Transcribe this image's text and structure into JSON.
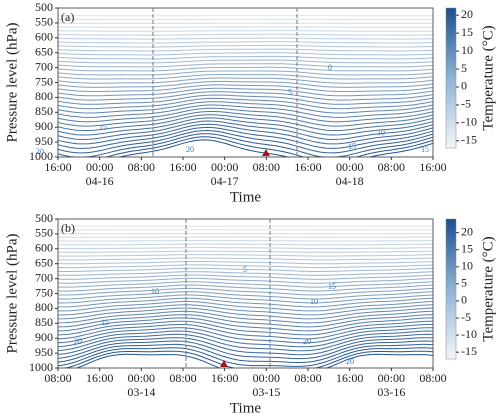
{
  "chart_data": [
    {
      "type": "contour",
      "panel_label": "(a)",
      "ylabel": "Pressure level (hPa)",
      "xlabel": "Time",
      "categories": [
        "16:00",
        "00:00",
        "08:00",
        "16:00",
        "00:00",
        "08:00",
        "16:00",
        "00:00",
        "08:00",
        "16:00"
      ],
      "dates": [
        null,
        "04-16",
        null,
        null,
        "04-17",
        null,
        null,
        "04-18",
        null,
        null
      ],
      "ylim": [
        1000,
        500
      ],
      "yticks": [
        500,
        550,
        600,
        650,
        700,
        750,
        800,
        850,
        900,
        950,
        1000
      ],
      "contour_levels": [
        -15,
        -14,
        -13,
        -12,
        -11,
        -10,
        -9,
        -8,
        -7,
        -6,
        -5,
        -4,
        -3,
        -2,
        -1,
        0,
        1,
        2,
        3,
        4,
        5,
        6,
        7,
        8,
        9,
        10,
        11,
        12,
        13,
        14,
        15,
        16,
        17,
        18,
        19,
        20,
        21
      ],
      "contour_labels": [
        20,
        15,
        20,
        15,
        10,
        5,
        0,
        15
      ],
      "colorbar": {
        "label": "Temperature (°C)",
        "lim": [
          -17,
          22
        ],
        "ticks": [
          20,
          15,
          10,
          5,
          0,
          -5,
          -10,
          -15
        ]
      }
    },
    {
      "type": "contour",
      "panel_label": "(b)",
      "ylabel": "Pressure level (hPa)",
      "xlabel": "Time",
      "categories": [
        "08:00",
        "16:00",
        "00:00",
        "08:00",
        "16:00",
        "00:00",
        "08:00",
        "16:00",
        "00:00",
        "08:00"
      ],
      "dates": [
        null,
        null,
        "03-14",
        null,
        null,
        "03-15",
        null,
        null,
        "03-16",
        null
      ],
      "ylim": [
        1000,
        500
      ],
      "yticks": [
        500,
        550,
        600,
        650,
        700,
        750,
        800,
        850,
        900,
        950,
        1000
      ],
      "contour_levels": [
        -15,
        -14,
        -13,
        -12,
        -11,
        -10,
        -9,
        -8,
        -7,
        -6,
        -5,
        -4,
        -3,
        -2,
        -1,
        0,
        1,
        2,
        3,
        4,
        5,
        6,
        7,
        8,
        9,
        10,
        11,
        12,
        13,
        14,
        15,
        16,
        17,
        18,
        19,
        20,
        21,
        22,
        23
      ],
      "contour_labels": [
        20,
        15,
        10,
        5,
        10,
        15,
        20,
        20
      ],
      "colorbar": {
        "label": "Temperature (°C)",
        "lim": [
          -17,
          24
        ],
        "ticks": [
          20,
          15,
          10,
          5,
          0,
          -5,
          -10,
          -15
        ]
      }
    }
  ]
}
